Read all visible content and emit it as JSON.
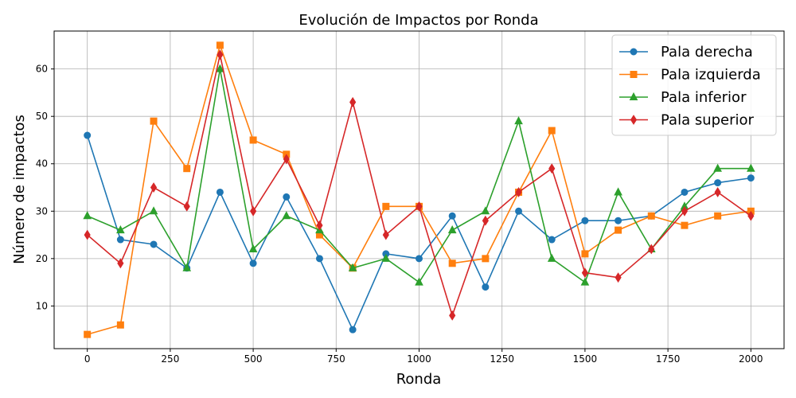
{
  "chart_data": {
    "type": "line",
    "title": "Evolución de Impactos por Ronda",
    "xlabel": "Ronda",
    "ylabel": "Número de impactos",
    "xlim": [
      -100,
      2100
    ],
    "ylim": [
      1,
      68
    ],
    "xticks": [
      0,
      250,
      500,
      750,
      1000,
      1250,
      1500,
      1750,
      2000
    ],
    "yticks": [
      10,
      20,
      30,
      40,
      50,
      60
    ],
    "grid": true,
    "legend_position": "top-right",
    "x": [
      0,
      100,
      200,
      300,
      400,
      500,
      600,
      700,
      800,
      900,
      1000,
      1100,
      1200,
      1300,
      1400,
      1500,
      1600,
      1700,
      1800,
      1900,
      2000
    ],
    "series": [
      {
        "name": "Pala derecha",
        "color": "#1f77b4",
        "marker": "circle",
        "values": [
          46,
          24,
          23,
          18,
          34,
          19,
          33,
          20,
          5,
          21,
          20,
          29,
          14,
          30,
          24,
          28,
          28,
          29,
          34,
          36,
          37
        ]
      },
      {
        "name": "Pala izquierda",
        "color": "#ff7f0e",
        "marker": "square",
        "values": [
          4,
          6,
          49,
          39,
          65,
          45,
          42,
          25,
          18,
          31,
          31,
          19,
          20,
          34,
          47,
          21,
          26,
          29,
          27,
          29,
          30
        ]
      },
      {
        "name": "Pala inferior",
        "color": "#2ca02c",
        "marker": "triangle",
        "values": [
          29,
          26,
          30,
          18,
          60,
          22,
          29,
          26,
          18,
          20,
          15,
          26,
          30,
          49,
          20,
          15,
          34,
          22,
          31,
          39,
          39
        ]
      },
      {
        "name": "Pala superior",
        "color": "#d62728",
        "marker": "diamond",
        "values": [
          25,
          19,
          35,
          31,
          63,
          30,
          41,
          27,
          53,
          25,
          31,
          8,
          28,
          34,
          39,
          17,
          16,
          22,
          30,
          34,
          29
        ]
      }
    ]
  }
}
